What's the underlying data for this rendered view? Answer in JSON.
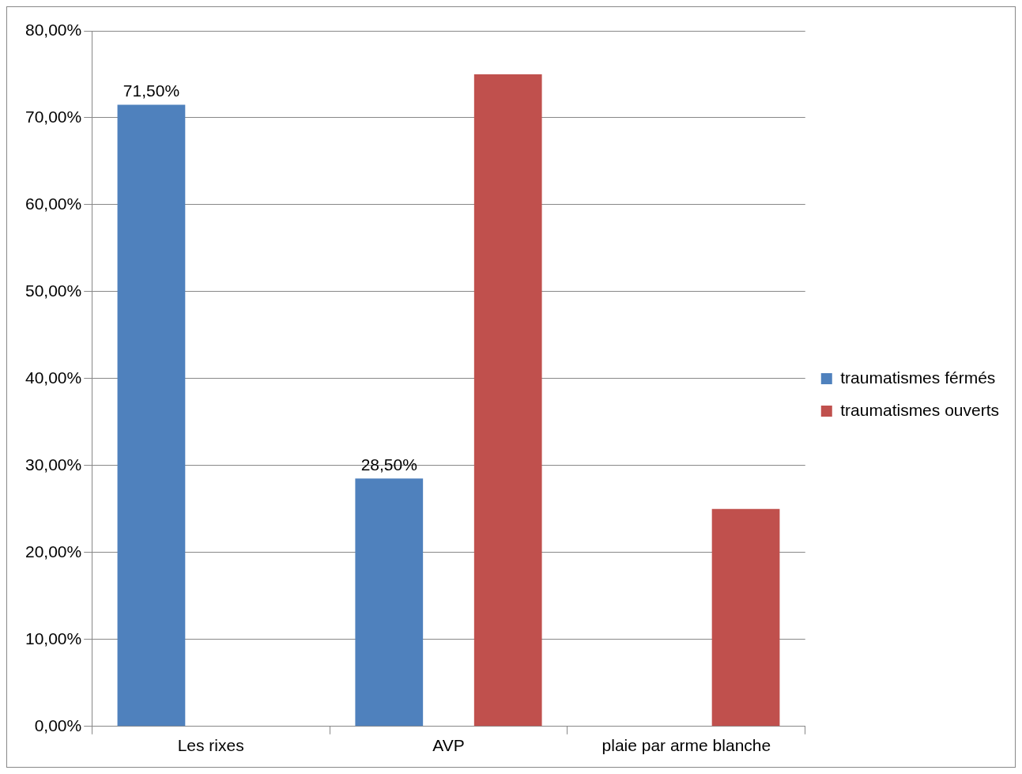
{
  "chart_data": {
    "type": "bar",
    "categories": [
      "Les rixes",
      "AVP",
      "plaie par arme blanche"
    ],
    "series": [
      {
        "name": "traumatismes férmés",
        "color": "#4f81bd",
        "values": [
          71.5,
          28.5,
          null
        ],
        "value_labels": [
          "71,50%",
          "28,50%",
          null
        ]
      },
      {
        "name": "traumatismes ouverts",
        "color": "#c0504d",
        "values": [
          null,
          75,
          25
        ]
      }
    ],
    "ylim": [
      0,
      80
    ],
    "yticks": [
      {
        "value": 0,
        "label": "0,00%"
      },
      {
        "value": 10,
        "label": "10,00%"
      },
      {
        "value": 20,
        "label": "20,00%"
      },
      {
        "value": 30,
        "label": "30,00%"
      },
      {
        "value": 40,
        "label": "40,00%"
      },
      {
        "value": 50,
        "label": "50,00%"
      },
      {
        "value": 60,
        "label": "60,00%"
      },
      {
        "value": 70,
        "label": "70,00%"
      },
      {
        "value": 80,
        "label": "80,00%"
      }
    ],
    "grid": "y",
    "legend": "right"
  }
}
